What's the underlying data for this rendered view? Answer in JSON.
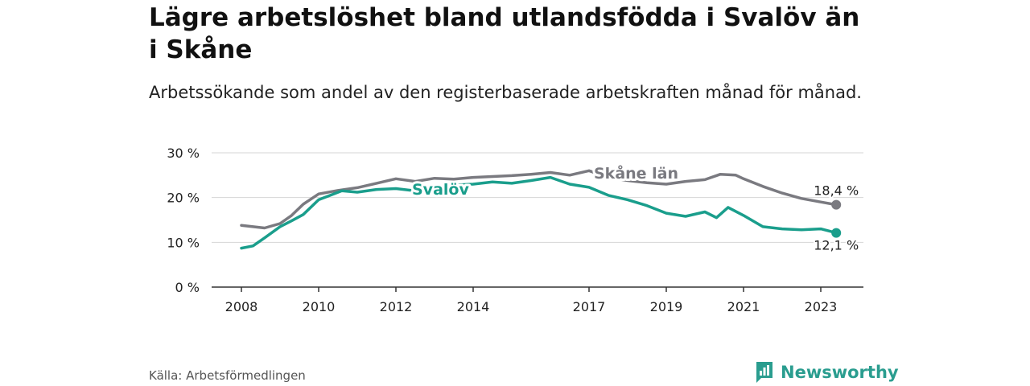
{
  "title": "Lägre arbetslöshet bland utlandsfödda i Svalöv än i Skåne",
  "subtitle": "Arbetssökande som andel av den registerbaserade arbetskraften månad för månad.",
  "source": "Källa: Arbetsförmedlingen",
  "brand": "Newsworthy",
  "chart_data": {
    "type": "line",
    "x_unit": "year",
    "xlim": [
      2007.6,
      2024.1
    ],
    "ylim": [
      0,
      30
    ],
    "y_ticks": [
      {
        "value": 0,
        "label": "0 %"
      },
      {
        "value": 10,
        "label": "10 %"
      },
      {
        "value": 20,
        "label": "20 %"
      },
      {
        "value": 30,
        "label": "30 %"
      }
    ],
    "x_ticks": [
      {
        "value": 2008,
        "label": "2008"
      },
      {
        "value": 2010,
        "label": "2010"
      },
      {
        "value": 2012,
        "label": "2012"
      },
      {
        "value": 2014,
        "label": "2014"
      },
      {
        "value": 2017,
        "label": "2017"
      },
      {
        "value": 2019,
        "label": "2019"
      },
      {
        "value": 2021,
        "label": "2021"
      },
      {
        "value": 2023,
        "label": "2023"
      }
    ],
    "grid": true,
    "series": [
      {
        "name": "Skåne län",
        "color": "#7a7a80",
        "end_label": "18,4 %",
        "x": [
          2008.0,
          2008.3,
          2008.6,
          2009.0,
          2009.3,
          2009.6,
          2010.0,
          2010.5,
          2011.0,
          2011.5,
          2012.0,
          2012.5,
          2013.0,
          2013.5,
          2014.0,
          2014.5,
          2015.0,
          2015.5,
          2016.0,
          2016.5,
          2017.0,
          2017.5,
          2018.0,
          2018.5,
          2019.0,
          2019.5,
          2020.0,
          2020.4,
          2020.8,
          2021.0,
          2021.5,
          2022.0,
          2022.5,
          2023.0,
          2023.4
        ],
        "values": [
          13.8,
          13.5,
          13.2,
          14.2,
          16.0,
          18.5,
          20.8,
          21.6,
          22.2,
          23.2,
          24.2,
          23.6,
          24.3,
          24.1,
          24.5,
          24.7,
          24.9,
          25.2,
          25.6,
          25.0,
          26.0,
          24.5,
          23.8,
          23.3,
          23.0,
          23.6,
          24.0,
          25.2,
          25.0,
          24.2,
          22.5,
          21.0,
          19.8,
          19.0,
          18.4
        ]
      },
      {
        "name": "Svalöv",
        "color": "#1a9e8c",
        "end_label": "12,1 %",
        "x": [
          2008.0,
          2008.3,
          2008.6,
          2009.0,
          2009.3,
          2009.6,
          2010.0,
          2010.3,
          2010.6,
          2011.0,
          2011.5,
          2012.0,
          2012.5,
          2013.0,
          2013.5,
          2014.0,
          2014.5,
          2015.0,
          2015.5,
          2016.0,
          2016.5,
          2017.0,
          2017.5,
          2018.0,
          2018.5,
          2019.0,
          2019.5,
          2020.0,
          2020.3,
          2020.6,
          2021.0,
          2021.5,
          2022.0,
          2022.5,
          2023.0,
          2023.4
        ],
        "values": [
          8.7,
          9.2,
          11.0,
          13.5,
          14.8,
          16.2,
          19.5,
          20.5,
          21.5,
          21.2,
          21.8,
          22.0,
          21.5,
          22.2,
          22.8,
          23.0,
          23.5,
          23.2,
          23.8,
          24.5,
          23.0,
          22.3,
          20.5,
          19.5,
          18.2,
          16.5,
          15.8,
          16.8,
          15.5,
          17.8,
          16.0,
          13.5,
          13.0,
          12.8,
          13.0,
          12.1
        ]
      }
    ]
  }
}
